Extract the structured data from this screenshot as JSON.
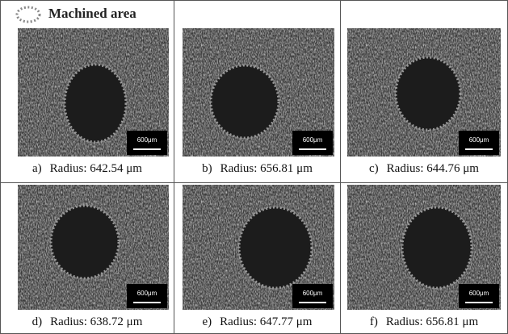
{
  "legend": {
    "label": "Machined area"
  },
  "panels": [
    {
      "label": "a)",
      "caption": "Radius: 642.54 μm",
      "scale_bar": "600μm"
    },
    {
      "label": "b)",
      "caption": "Radius: 656.81 μm",
      "scale_bar": "600μm"
    },
    {
      "label": "c)",
      "caption": "Radius: 644.76 μm",
      "scale_bar": "600μm"
    },
    {
      "label": "d)",
      "caption": "Radius: 638.72 μm",
      "scale_bar": "600μm"
    },
    {
      "label": "e)",
      "caption": "Radius: 647.77 μm",
      "scale_bar": "600μm"
    },
    {
      "label": "f)",
      "caption": "Radius: 656.81 μm",
      "scale_bar": "600μm"
    }
  ]
}
